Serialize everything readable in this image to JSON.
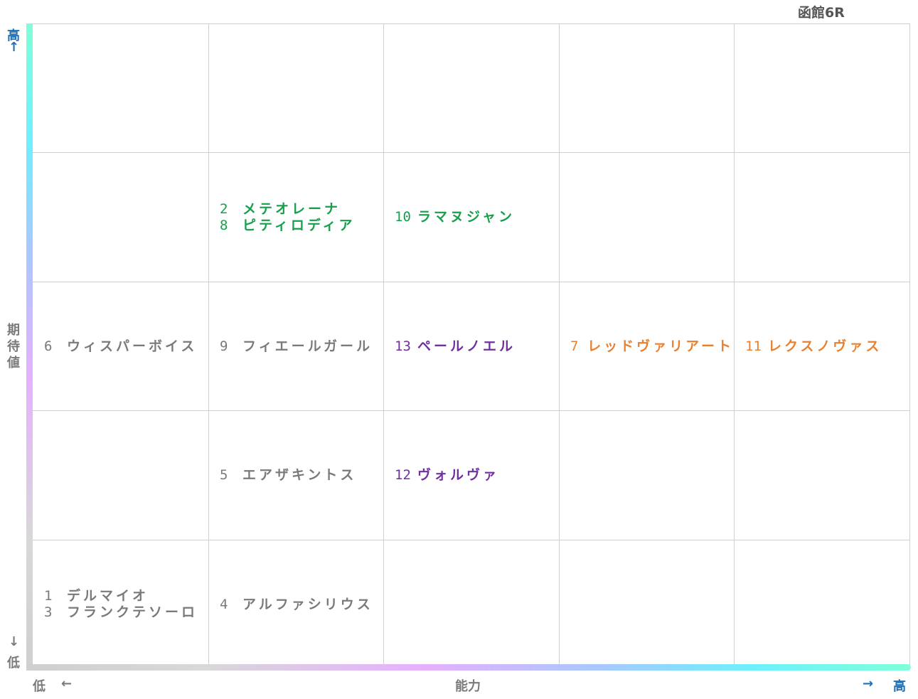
{
  "title": "函館6R",
  "y_axis": {
    "high": "高",
    "high_arrow": "↑",
    "label": "期待値",
    "low_arrow": "↓",
    "low": "低"
  },
  "x_axis": {
    "low": "低",
    "low_arrow": "←",
    "label": "能力",
    "high_arrow": "→",
    "high": "高"
  },
  "grid": {
    "rows": [
      [
        [],
        [],
        [],
        [],
        []
      ],
      [
        [],
        [
          {
            "number": "2",
            "name": "メテオレーナ",
            "color": "#17a04c"
          },
          {
            "number": "8",
            "name": "ピティロディア",
            "color": "#17a04c"
          }
        ],
        [
          {
            "number": "10",
            "name": "ラマヌジャン",
            "color": "#17a04c"
          }
        ],
        [],
        []
      ],
      [
        [
          {
            "number": "6",
            "name": "ウィスパーボイス",
            "color": "#7a7a7a"
          }
        ],
        [
          {
            "number": "9",
            "name": "フィエールガール",
            "color": "#7a7a7a"
          }
        ],
        [
          {
            "number": "13",
            "name": "ペールノエル",
            "color": "#7030a0"
          }
        ],
        [
          {
            "number": "7",
            "name": "レッドヴァリアート",
            "color": "#e8802f"
          }
        ],
        [
          {
            "number": "11",
            "name": "レクスノヴァス",
            "color": "#e8802f"
          }
        ]
      ],
      [
        [],
        [
          {
            "number": "5",
            "name": "エアザキントス",
            "color": "#7a7a7a"
          }
        ],
        [
          {
            "number": "12",
            "name": "ヴォルヴァ",
            "color": "#7030a0"
          }
        ],
        [],
        []
      ],
      [
        [
          {
            "number": "1",
            "name": "デルマイオ",
            "color": "#7a7a7a"
          },
          {
            "number": "3",
            "name": "フランクテソーロ",
            "color": "#7a7a7a"
          }
        ],
        [
          {
            "number": "4",
            "name": "アルファシリウス",
            "color": "#7a7a7a"
          }
        ],
        [],
        [],
        []
      ]
    ]
  }
}
